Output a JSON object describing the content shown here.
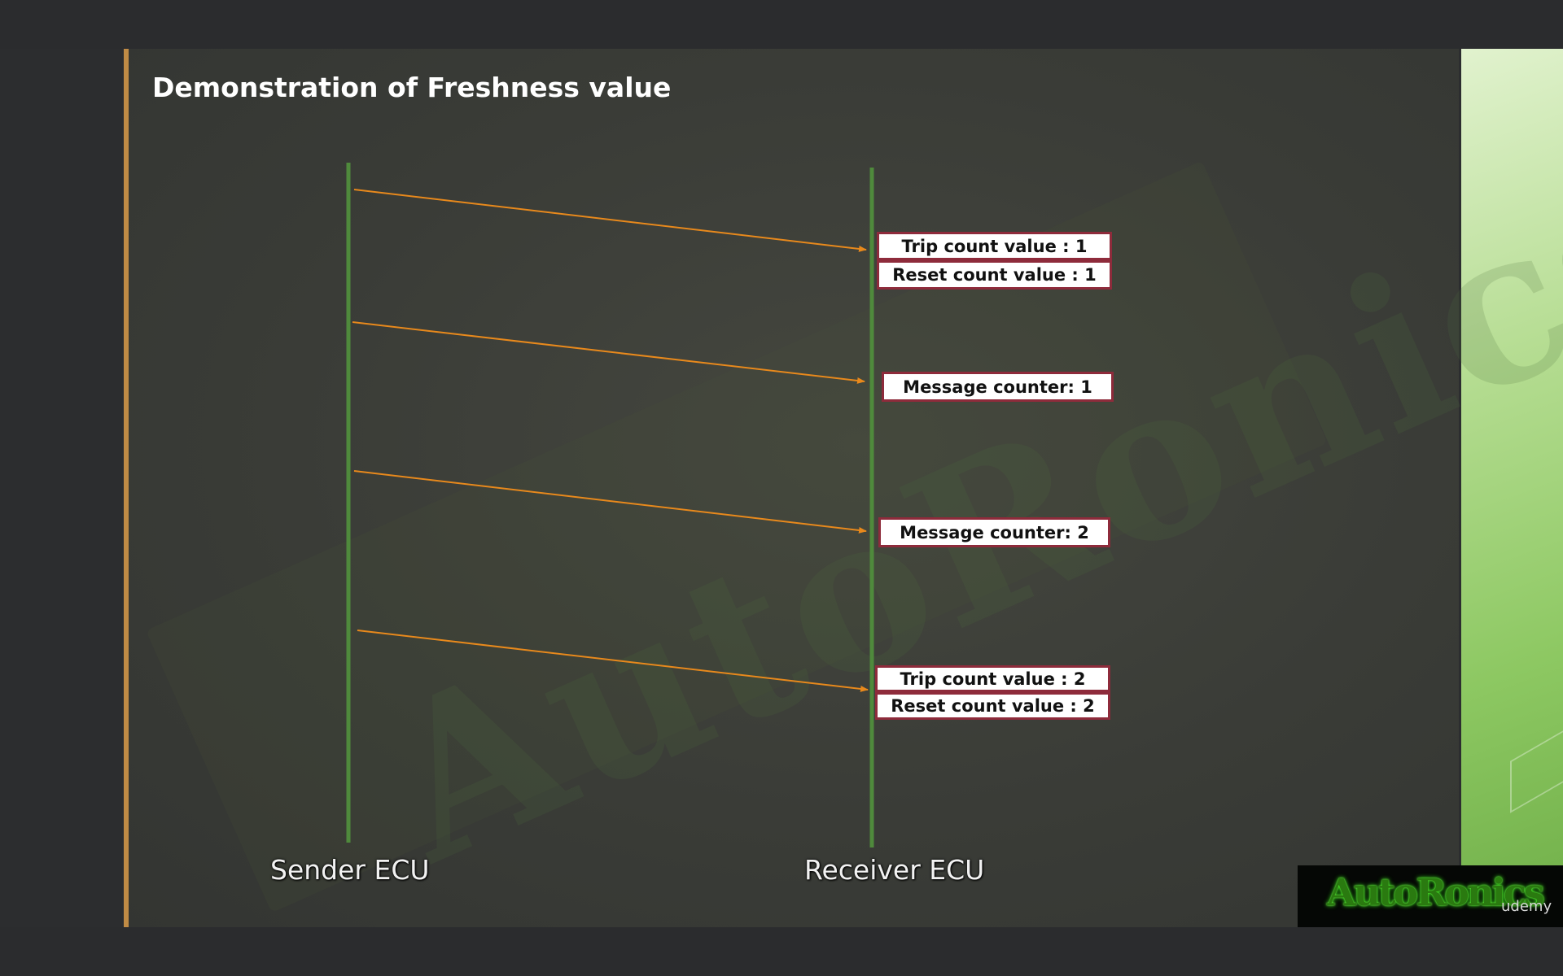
{
  "slide": {
    "title": "Demonstration of Freshness value"
  },
  "lifelines": {
    "sender": "Sender ECU",
    "receiver": "Receiver ECU"
  },
  "messages": [
    {
      "labels": [
        "Trip count value : 1",
        "Reset count value : 1"
      ]
    },
    {
      "labels": [
        "Message counter: 1"
      ]
    },
    {
      "labels": [
        "Message counter: 2"
      ]
    },
    {
      "labels": [
        "Trip count value : 2",
        "Reset count value : 2"
      ]
    }
  ],
  "branding": {
    "watermark": "AutoRonics",
    "logo": "AutoRonics",
    "platform": "udemy"
  },
  "colors": {
    "lifeline": "#4f8a3c",
    "arrow": "#e8891c",
    "box_border": "#8e2b3b",
    "accent": "#c08b45"
  }
}
